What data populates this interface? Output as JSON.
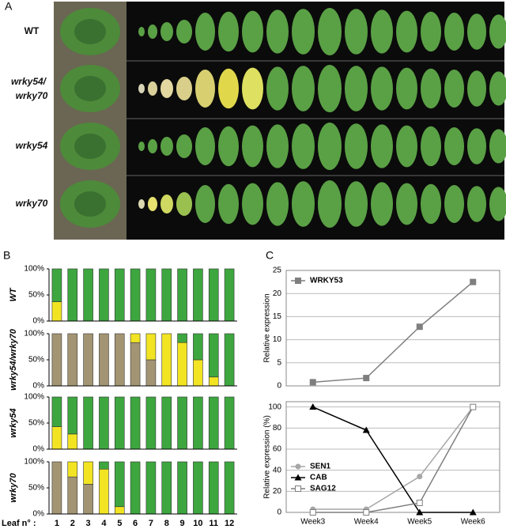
{
  "panel_labels": [
    "A",
    "B",
    "C"
  ],
  "photo": {
    "labels": [
      "WT",
      "wrky54/",
      "wrky70",
      "wrky54",
      "wrky70"
    ]
  },
  "chart_data": [
    {
      "type": "bar",
      "stacked": true,
      "y_label": "WT",
      "categories": [
        null,
        null,
        null,
        null,
        null,
        null,
        null,
        null,
        null,
        null,
        null,
        null
      ],
      "ylim": [
        0,
        100
      ],
      "yticks": [
        {
          "value": 0,
          "label": "0%"
        },
        {
          "value": 50,
          "label": "50%"
        },
        {
          "value": 100,
          "label": "100%"
        }
      ],
      "series": [
        {
          "color": "#a39573",
          "values": [
            0,
            0,
            0,
            0,
            0,
            0,
            0,
            0,
            0,
            0,
            0,
            0
          ]
        },
        {
          "color": "#f2e423",
          "values": [
            37,
            0,
            0,
            0,
            0,
            0,
            0,
            0,
            0,
            0,
            0,
            0
          ]
        },
        {
          "color": "#3da63f",
          "values": [
            63,
            100,
            100,
            100,
            100,
            100,
            100,
            100,
            100,
            100,
            100,
            100
          ]
        }
      ]
    },
    {
      "type": "bar",
      "stacked": true,
      "y_label": "wrky54/wrky70",
      "categories": [
        null,
        null,
        null,
        null,
        null,
        null,
        null,
        null,
        null,
        null,
        null,
        null
      ],
      "ylim": [
        0,
        100
      ],
      "yticks": [
        {
          "value": 0,
          "label": "0%"
        },
        {
          "value": 50,
          "label": "50%"
        },
        {
          "value": 100,
          "label": "100%"
        }
      ],
      "series": [
        {
          "color": "#a39573",
          "values": [
            100,
            100,
            100,
            100,
            100,
            83,
            50,
            0,
            0,
            0,
            0,
            0
          ]
        },
        {
          "color": "#f2e423",
          "values": [
            0,
            0,
            0,
            0,
            0,
            17,
            50,
            100,
            83,
            50,
            17,
            0
          ]
        },
        {
          "color": "#3da63f",
          "values": [
            0,
            0,
            0,
            0,
            0,
            0,
            0,
            0,
            17,
            50,
            83,
            100
          ]
        }
      ]
    },
    {
      "type": "bar",
      "stacked": true,
      "y_label": "wrky54",
      "categories": [
        null,
        null,
        null,
        null,
        null,
        null,
        null,
        null,
        null,
        null,
        null,
        null
      ],
      "ylim": [
        0,
        100
      ],
      "yticks": [
        {
          "value": 0,
          "label": "0%"
        },
        {
          "value": 50,
          "label": "50%"
        },
        {
          "value": 100,
          "label": "100%"
        }
      ],
      "series": [
        {
          "color": "#a39573",
          "values": [
            0,
            0,
            0,
            0,
            0,
            0,
            0,
            0,
            0,
            0,
            0,
            0
          ]
        },
        {
          "color": "#f2e423",
          "values": [
            43,
            29,
            0,
            0,
            0,
            0,
            0,
            0,
            0,
            0,
            0,
            0
          ]
        },
        {
          "color": "#3da63f",
          "values": [
            57,
            71,
            100,
            100,
            100,
            100,
            100,
            100,
            100,
            100,
            100,
            100
          ]
        }
      ]
    },
    {
      "type": "bar",
      "stacked": true,
      "y_label": "wrky70",
      "x_label": "Leaf n° :",
      "categories": [
        "1",
        "2",
        "3",
        "4",
        "5",
        "6",
        "7",
        "8",
        "9",
        "10",
        "11",
        "12"
      ],
      "ylim": [
        0,
        100
      ],
      "yticks": [
        {
          "value": 0,
          "label": "0%"
        },
        {
          "value": 50,
          "label": "50%"
        },
        {
          "value": 100,
          "label": "100%"
        }
      ],
      "series": [
        {
          "color": "#a39573",
          "values": [
            100,
            71,
            57,
            0,
            0,
            0,
            0,
            0,
            0,
            0,
            0,
            0
          ]
        },
        {
          "color": "#f2e423",
          "values": [
            0,
            29,
            43,
            86,
            14,
            0,
            0,
            0,
            0,
            0,
            0,
            0
          ]
        },
        {
          "color": "#3da63f",
          "values": [
            0,
            0,
            0,
            14,
            86,
            100,
            100,
            100,
            100,
            100,
            100,
            100
          ]
        }
      ]
    },
    {
      "type": "line",
      "y_label": "Relative expression",
      "categories": [
        null,
        null,
        null,
        null
      ],
      "ylim": [
        0,
        25
      ],
      "yticks": [
        0,
        5,
        10,
        15,
        20,
        25
      ],
      "grid": true,
      "series": [
        {
          "name": "WRKY53",
          "color": "#7f7f7f",
          "marker": "square",
          "values": [
            0.8,
            1.7,
            12.8,
            22.5
          ]
        }
      ]
    },
    {
      "type": "line",
      "y_label": "Relative expression (%)",
      "categories": [
        "Week3",
        "Week4",
        "Week5",
        "Week6"
      ],
      "ylim": [
        0,
        105
      ],
      "yticks": [
        0,
        20,
        40,
        60,
        80,
        100
      ],
      "grid": true,
      "series": [
        {
          "name": "SEN1",
          "color": "#a6a6a6",
          "marker": "circle",
          "values": [
            3,
            3,
            34,
            100
          ]
        },
        {
          "name": "CAB",
          "color": "#000000",
          "marker": "triangle",
          "values": [
            100,
            78,
            0,
            0
          ]
        },
        {
          "name": "SAG12",
          "color": "#7f7f7f",
          "marker": "open-square",
          "values": [
            0,
            0,
            9,
            100
          ]
        }
      ]
    }
  ]
}
